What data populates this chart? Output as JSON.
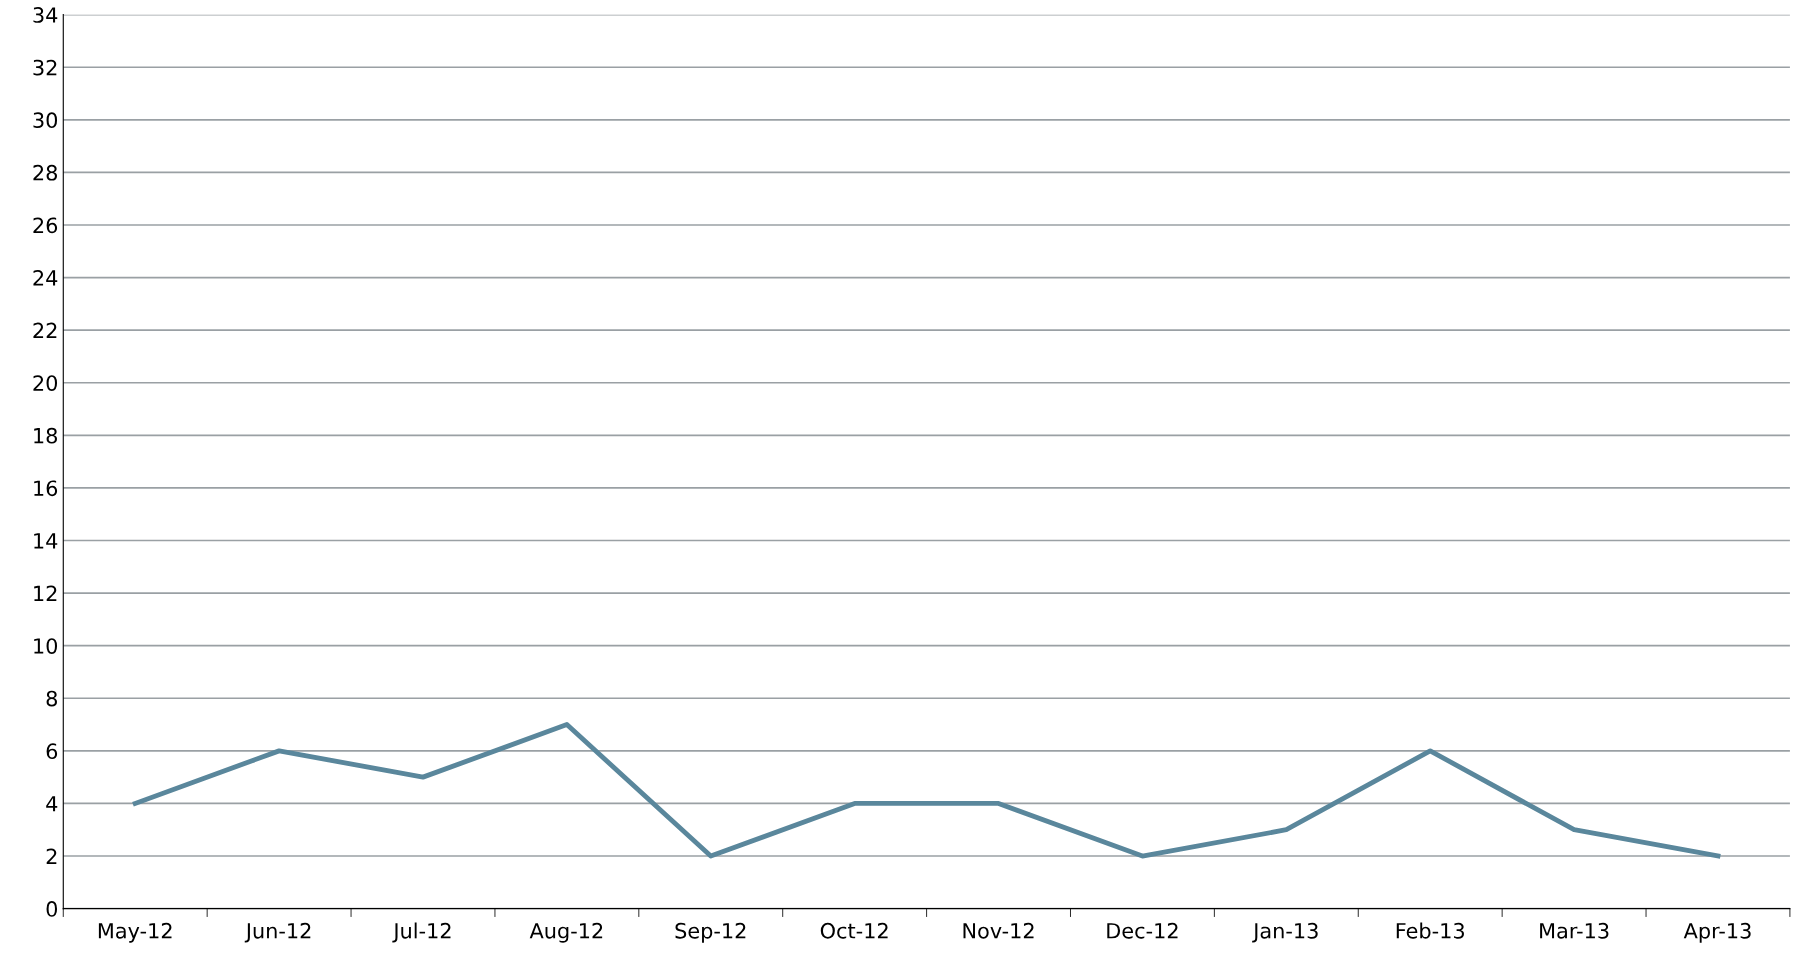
{
  "chart_data": {
    "type": "line",
    "categories": [
      "May-12",
      "Jun-12",
      "Jul-12",
      "Aug-12",
      "Sep-12",
      "Oct-12",
      "Nov-12",
      "Dec-12",
      "Jan-13",
      "Feb-13",
      "Mar-13",
      "Apr-13"
    ],
    "series": [
      {
        "color": "#5a879c",
        "values": [
          4,
          6,
          5,
          7,
          2,
          4,
          4,
          2,
          3,
          6,
          3,
          2
        ]
      }
    ],
    "ylim": [
      0,
      34
    ],
    "yticks": [
      0,
      2,
      4,
      6,
      8,
      10,
      12,
      14,
      16,
      18,
      20,
      22,
      24,
      26,
      28,
      30,
      32,
      34
    ],
    "grid": "y",
    "marker": "none",
    "line_style": "solid"
  }
}
